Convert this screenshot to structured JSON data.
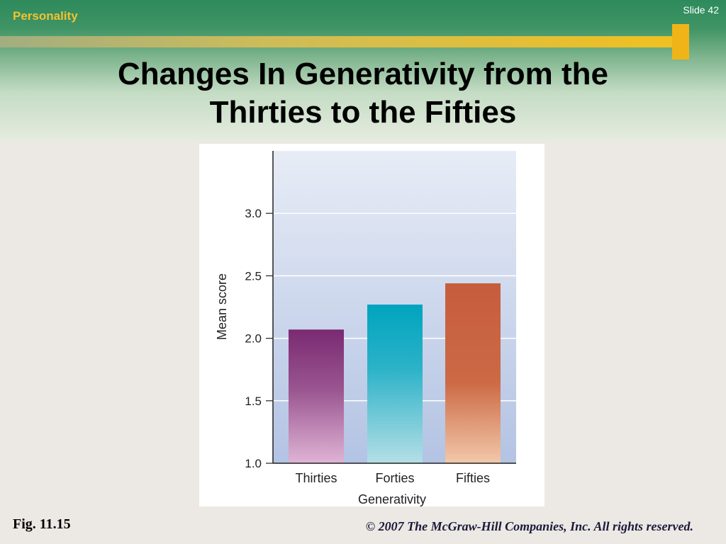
{
  "header": {
    "section_label": "Personality",
    "slide_number": "Slide 42",
    "title_line1": "Changes In Generativity from the",
    "title_line2": "Thirties to the Fifties"
  },
  "footer": {
    "figure_label": "Fig. 11.15",
    "copyright": "© 2007 The McGraw-Hill Companies, Inc. All rights reserved."
  },
  "colors": {
    "header_green": "#2e8a5c",
    "accent_gold": "#f0b419",
    "thirties_bar": "#7a2a72",
    "forties_bar": "#00a4be",
    "fifties_bar": "#c65d3e"
  },
  "chart_data": {
    "type": "bar",
    "categories": [
      "Thirties",
      "Forties",
      "Fifties"
    ],
    "values": [
      2.07,
      2.27,
      2.44
    ],
    "xlabel": "Generativity",
    "ylabel": "Mean score",
    "ylim": [
      1.0,
      3.5
    ],
    "yticks": [
      "1.0",
      "1.5",
      "2.0",
      "2.5",
      "3.0"
    ],
    "grid": true,
    "legend": "none"
  }
}
